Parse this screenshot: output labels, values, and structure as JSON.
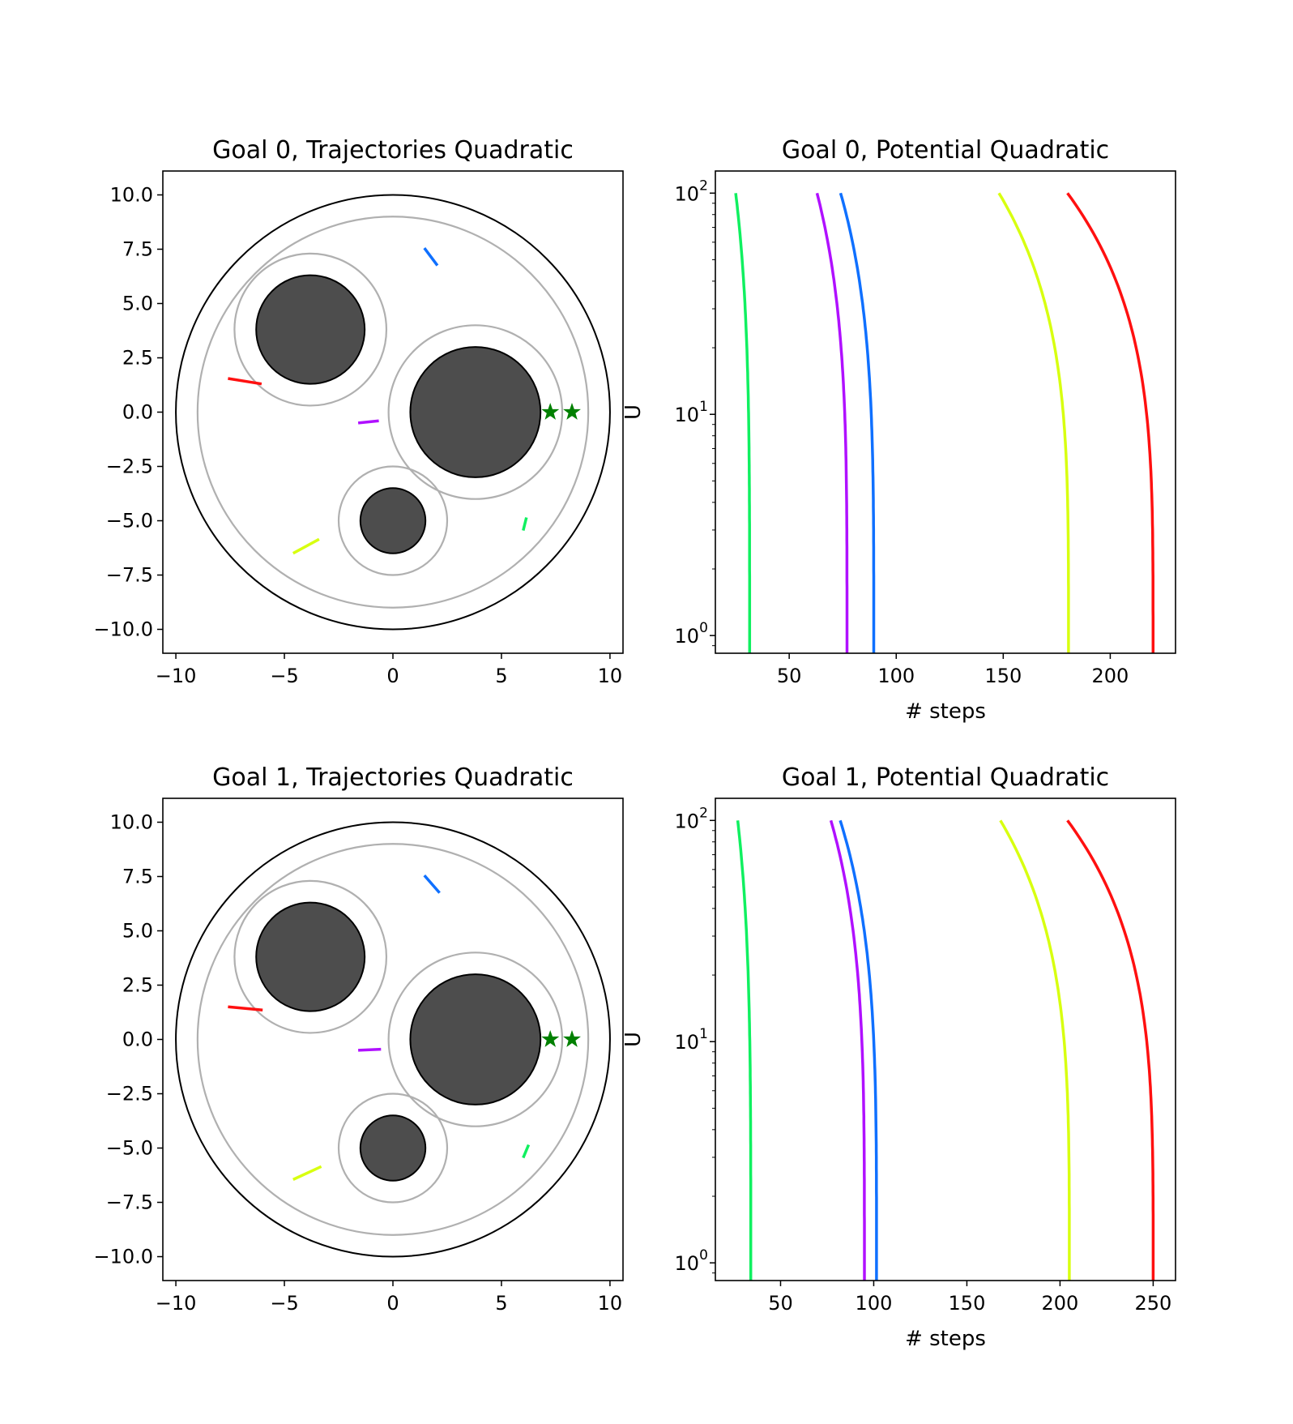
{
  "chart_data": [
    {
      "type": "scatter",
      "title": "Goal 0, Trajectories Quadratic",
      "xlim": [
        -10.6,
        10.6
      ],
      "ylim": [
        -11.1,
        11.1
      ],
      "xticks": [
        -10,
        -5,
        0,
        5,
        10
      ],
      "xtick_labels": [
        "−10",
        "−5",
        "0",
        "5",
        "10"
      ],
      "yticks": [
        10.0,
        7.5,
        5.0,
        2.5,
        0.0,
        -2.5,
        -5.0,
        -7.5,
        -10.0
      ],
      "ytick_labels": [
        "10.0",
        "7.5",
        "5.0",
        "2.5",
        "0.0",
        "−2.5",
        "−5.0",
        "−7.5",
        "−10.0"
      ],
      "boundary_circles": [
        {
          "cx": 0,
          "cy": 0,
          "r": 10,
          "color": "#000000"
        },
        {
          "cx": 0,
          "cy": 0,
          "r": 9,
          "color": "#b0b0b0"
        }
      ],
      "obstacles": [
        {
          "cx": -3.8,
          "cy": 3.8,
          "r": 2.5,
          "margin_r": 3.5
        },
        {
          "cx": 3.8,
          "cy": 0.0,
          "r": 3.0,
          "margin_r": 4.0
        },
        {
          "cx": 0.0,
          "cy": -5.0,
          "r": 1.5,
          "margin_r": 2.5
        }
      ],
      "goals": [
        [
          7.25,
          0.0
        ],
        [
          8.25,
          0.0
        ]
      ],
      "segments": [
        {
          "color": "#0f70ff",
          "points": [
            [
              1.45,
              7.55
            ],
            [
              2.05,
              6.75
            ]
          ]
        },
        {
          "color": "#ff1010",
          "points": [
            [
              -7.6,
              1.55
            ],
            [
              -6.05,
              1.3
            ]
          ]
        },
        {
          "color": "#b010ff",
          "points": [
            [
              -1.6,
              -0.5
            ],
            [
              -0.65,
              -0.4
            ]
          ]
        },
        {
          "color": "#d8ff10",
          "points": [
            [
              -4.6,
              -6.5
            ],
            [
              -3.4,
              -5.85
            ]
          ]
        },
        {
          "color": "#10f060",
          "points": [
            [
              6.0,
              -5.45
            ],
            [
              6.15,
              -4.85
            ]
          ]
        }
      ]
    },
    {
      "type": "line",
      "title": "Goal 0, Potential Quadratic",
      "xlabel": "# steps",
      "ylabel": "U",
      "yscale": "log",
      "xlim": [
        15.5,
        230.5
      ],
      "ylim_log10": [
        -0.08,
        2.1
      ],
      "xticks": [
        50,
        100,
        150,
        200
      ],
      "xtick_labels": [
        "50",
        "100",
        "150",
        "200"
      ],
      "yticks": [
        1,
        10,
        100
      ],
      "ytick_labels": [
        [
          "10",
          "0"
        ],
        [
          "10",
          "1"
        ],
        [
          "10",
          "2"
        ]
      ],
      "curve_shape": {
        "u_start": 100,
        "u_end": 0.8
      },
      "series": [
        {
          "color": "#10f060",
          "x_start": 25,
          "x_end": 31.5
        },
        {
          "color": "#b010ff",
          "x_start": 63,
          "x_end": 77
        },
        {
          "color": "#0f70ff",
          "x_start": 74,
          "x_end": 89.5
        },
        {
          "color": "#d8ff10",
          "x_start": 148,
          "x_end": 180.5
        },
        {
          "color": "#ff1010",
          "x_start": 180,
          "x_end": 220
        }
      ]
    },
    {
      "type": "scatter",
      "title": "Goal 1, Trajectories Quadratic",
      "xlim": [
        -10.6,
        10.6
      ],
      "ylim": [
        -11.1,
        11.1
      ],
      "xticks": [
        -10,
        -5,
        0,
        5,
        10
      ],
      "xtick_labels": [
        "−10",
        "−5",
        "0",
        "5",
        "10"
      ],
      "yticks": [
        10.0,
        7.5,
        5.0,
        2.5,
        0.0,
        -2.5,
        -5.0,
        -7.5,
        -10.0
      ],
      "ytick_labels": [
        "10.0",
        "7.5",
        "5.0",
        "2.5",
        "0.0",
        "−2.5",
        "−5.0",
        "−7.5",
        "−10.0"
      ],
      "boundary_circles": [
        {
          "cx": 0,
          "cy": 0,
          "r": 10,
          "color": "#000000"
        },
        {
          "cx": 0,
          "cy": 0,
          "r": 9,
          "color": "#b0b0b0"
        }
      ],
      "obstacles": [
        {
          "cx": -3.8,
          "cy": 3.8,
          "r": 2.5,
          "margin_r": 3.5
        },
        {
          "cx": 3.8,
          "cy": 0.0,
          "r": 3.0,
          "margin_r": 4.0
        },
        {
          "cx": 0.0,
          "cy": -5.0,
          "r": 1.5,
          "margin_r": 2.5
        }
      ],
      "goals": [
        [
          7.25,
          0.0
        ],
        [
          8.25,
          0.0
        ]
      ],
      "segments": [
        {
          "color": "#0f70ff",
          "points": [
            [
              1.45,
              7.55
            ],
            [
              2.15,
              6.75
            ]
          ]
        },
        {
          "color": "#ff1010",
          "points": [
            [
              -7.6,
              1.5
            ],
            [
              -6.0,
              1.35
            ]
          ]
        },
        {
          "color": "#b010ff",
          "points": [
            [
              -1.6,
              -0.5
            ],
            [
              -0.55,
              -0.45
            ]
          ]
        },
        {
          "color": "#d8ff10",
          "points": [
            [
              -4.6,
              -6.45
            ],
            [
              -3.3,
              -5.85
            ]
          ]
        },
        {
          "color": "#10f060",
          "points": [
            [
              6.0,
              -5.45
            ],
            [
              6.25,
              -4.85
            ]
          ]
        }
      ]
    },
    {
      "type": "line",
      "title": "Goal 1, Potential Quadratic",
      "xlabel": "# steps",
      "ylabel": "U",
      "yscale": "log",
      "xlim": [
        15,
        262
      ],
      "ylim_log10": [
        -0.08,
        2.1
      ],
      "xticks": [
        50,
        100,
        150,
        200,
        250
      ],
      "xtick_labels": [
        "50",
        "100",
        "150",
        "200",
        "250"
      ],
      "yticks": [
        1,
        10,
        100
      ],
      "ytick_labels": [
        [
          "10",
          "0"
        ],
        [
          "10",
          "1"
        ],
        [
          "10",
          "2"
        ]
      ],
      "curve_shape": {
        "u_start": 100,
        "u_end": 0.8
      },
      "series": [
        {
          "color": "#10f060",
          "x_start": 27,
          "x_end": 34
        },
        {
          "color": "#b010ff",
          "x_start": 77,
          "x_end": 95
        },
        {
          "color": "#0f70ff",
          "x_start": 82,
          "x_end": 101.5
        },
        {
          "color": "#d8ff10",
          "x_start": 168,
          "x_end": 205
        },
        {
          "color": "#ff1010",
          "x_start": 204,
          "x_end": 250
        }
      ]
    }
  ]
}
